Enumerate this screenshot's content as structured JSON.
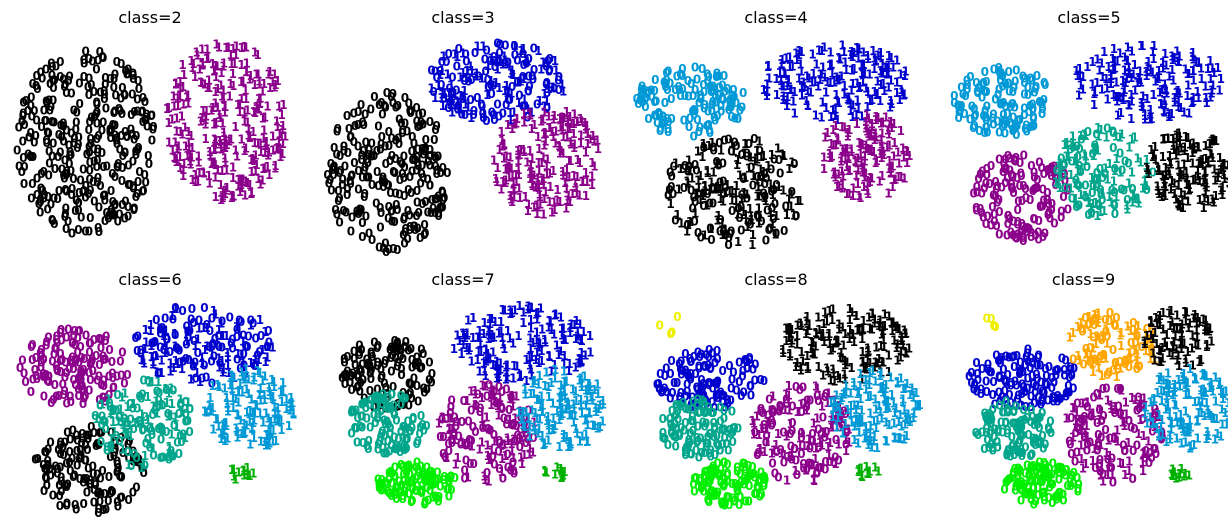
{
  "chart_data": [
    {
      "type": "scatter",
      "title": "class=2",
      "marker": "digit label (0 or 1)",
      "clusters": [
        {
          "color": "#000000",
          "labels": [
            "0"
          ]
        },
        {
          "color": "#8B008B",
          "labels": [
            "1"
          ]
        }
      ]
    },
    {
      "type": "scatter",
      "title": "class=3",
      "marker": "digit label (0 or 1)",
      "clusters": [
        {
          "color": "#000000",
          "labels": [
            "0"
          ]
        },
        {
          "color": "#0000CC",
          "labels": [
            "0",
            "1"
          ]
        },
        {
          "color": "#8B008B",
          "labels": [
            "1"
          ]
        }
      ]
    },
    {
      "type": "scatter",
      "title": "class=4",
      "marker": "digit label (0 or 1)",
      "clusters": [
        {
          "color": "#0099D6",
          "labels": [
            "0"
          ]
        },
        {
          "color": "#000000",
          "labels": [
            "0",
            "1"
          ]
        },
        {
          "color": "#0000CC",
          "labels": [
            "1"
          ]
        },
        {
          "color": "#8B008B",
          "labels": [
            "1"
          ]
        }
      ]
    },
    {
      "type": "scatter",
      "title": "class=5",
      "marker": "digit label (0 or 1)",
      "clusters": [
        {
          "color": "#0099D6",
          "labels": [
            "0"
          ]
        },
        {
          "color": "#8B008B",
          "labels": [
            "0"
          ]
        },
        {
          "color": "#00A58C",
          "labels": [
            "0",
            "1"
          ]
        },
        {
          "color": "#0000CC",
          "labels": [
            "1"
          ]
        },
        {
          "color": "#000000",
          "labels": [
            "1"
          ]
        }
      ]
    },
    {
      "type": "scatter",
      "title": "class=6",
      "marker": "digit label (0 or 1)",
      "clusters": [
        {
          "color": "#8B008B",
          "labels": [
            "0"
          ]
        },
        {
          "color": "#000000",
          "labels": [
            "0"
          ]
        },
        {
          "color": "#00A58C",
          "labels": [
            "0",
            "1"
          ]
        },
        {
          "color": "#0000CC",
          "labels": [
            "0",
            "1"
          ]
        },
        {
          "color": "#0099D6",
          "labels": [
            "1"
          ]
        },
        {
          "color": "#00B000",
          "labels": [
            "1"
          ]
        }
      ]
    },
    {
      "type": "scatter",
      "title": "class=7",
      "marker": "digit label (0 or 1)",
      "clusters": [
        {
          "color": "#000000",
          "labels": [
            "0"
          ]
        },
        {
          "color": "#00A58C",
          "labels": [
            "0"
          ]
        },
        {
          "color": "#00EE00",
          "labels": [
            "0"
          ]
        },
        {
          "color": "#8B008B",
          "labels": [
            "0",
            "1"
          ]
        },
        {
          "color": "#0000CC",
          "labels": [
            "1"
          ]
        },
        {
          "color": "#0099D6",
          "labels": [
            "1"
          ]
        },
        {
          "color": "#00B000",
          "labels": [
            "1"
          ]
        }
      ]
    },
    {
      "type": "scatter",
      "title": "class=8",
      "marker": "digit label (0 or 1)",
      "clusters": [
        {
          "color": "#EEEE00",
          "labels": [
            "0"
          ]
        },
        {
          "color": "#0000CC",
          "labels": [
            "0"
          ]
        },
        {
          "color": "#00A58C",
          "labels": [
            "0"
          ]
        },
        {
          "color": "#00EE00",
          "labels": [
            "0"
          ]
        },
        {
          "color": "#8B008B",
          "labels": [
            "0",
            "1"
          ]
        },
        {
          "color": "#000000",
          "labels": [
            "1"
          ]
        },
        {
          "color": "#0099D6",
          "labels": [
            "1"
          ]
        },
        {
          "color": "#00B000",
          "labels": [
            "1"
          ]
        }
      ]
    },
    {
      "type": "scatter",
      "title": "class=9",
      "marker": "digit label (0 or 1)",
      "clusters": [
        {
          "color": "#EEEE00",
          "labels": [
            "0"
          ]
        },
        {
          "color": "#0000CC",
          "labels": [
            "0"
          ]
        },
        {
          "color": "#00A58C",
          "labels": [
            "0"
          ]
        },
        {
          "color": "#00EE00",
          "labels": [
            "0"
          ]
        },
        {
          "color": "#8B008B",
          "labels": [
            "0",
            "1"
          ]
        },
        {
          "color": "#FFA500",
          "labels": [
            "0",
            "1"
          ]
        },
        {
          "color": "#000000",
          "labels": [
            "1"
          ]
        },
        {
          "color": "#0099D6",
          "labels": [
            "1"
          ]
        },
        {
          "color": "#00B000",
          "labels": [
            "1"
          ]
        }
      ]
    }
  ]
}
